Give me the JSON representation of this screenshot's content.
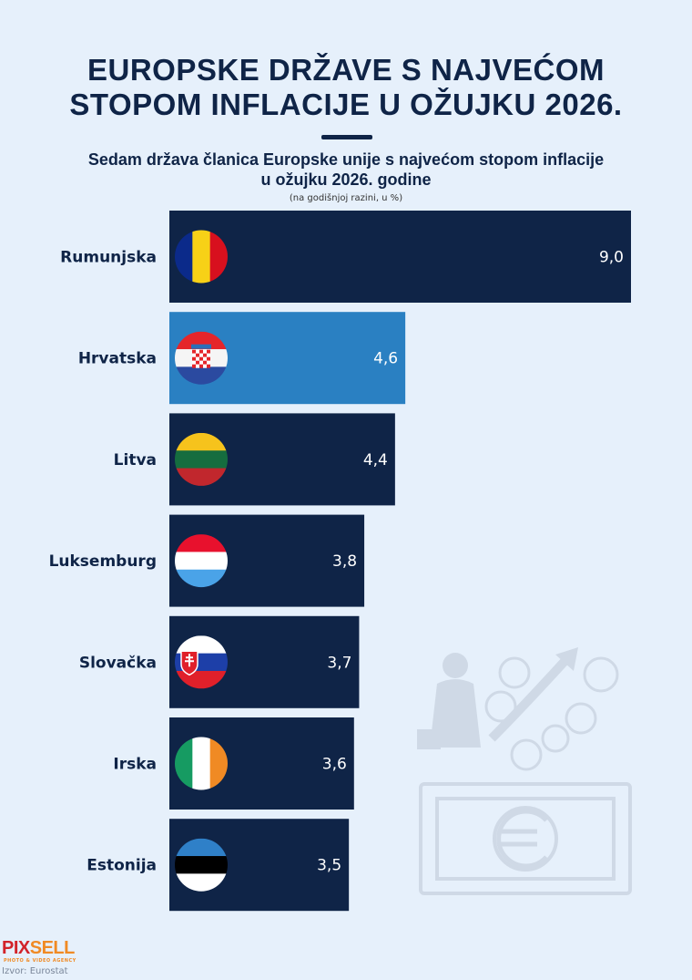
{
  "title_lines": [
    "EUROPSKE DRŽAVE S NAJVEĆOM",
    "STOPOM INFLACIJE U OŽUJKU 2026."
  ],
  "subtitle_lines": [
    "Sedam država članica Europske unije s najvećom stopom inflacije",
    "u ožujku 2026. godine"
  ],
  "unit_note": "(na godišnjoj razini, u %)",
  "footer": {
    "logo_part1": "PIX",
    "logo_part2": "SELL",
    "agency": "PHOTO & VIDEO AGENCY",
    "source": "Izvor: Eurostat"
  },
  "colors": {
    "background": "#e6f0fb",
    "bar": "#0f2447",
    "highlight": "#2a80c2",
    "text": "#0f2447"
  },
  "chart_data": {
    "type": "bar",
    "orientation": "horizontal",
    "categories": [
      "Rumunjska",
      "Hrvatska",
      "Litva",
      "Luksemburg",
      "Slovačka",
      "Irska",
      "Estonija"
    ],
    "values": [
      9.0,
      4.6,
      4.4,
      3.8,
      3.7,
      3.6,
      3.5
    ],
    "value_labels": [
      "9,0",
      "4,6",
      "4,4",
      "3,8",
      "3,7",
      "3,6",
      "3,5"
    ],
    "highlighted": "Hrvatska",
    "flags": [
      "romania-flag-icon",
      "croatia-flag-icon",
      "lithuania-flag-icon",
      "luxembourg-flag-icon",
      "slovakia-flag-icon",
      "ireland-flag-icon",
      "estonia-flag-icon"
    ],
    "xlim": [
      0,
      9.0
    ],
    "grid": false,
    "title": "Sedam država članica Europske unije s najvećom stopom inflacije u ožujku 2026. godine",
    "ylabel": "",
    "xlabel": ""
  }
}
